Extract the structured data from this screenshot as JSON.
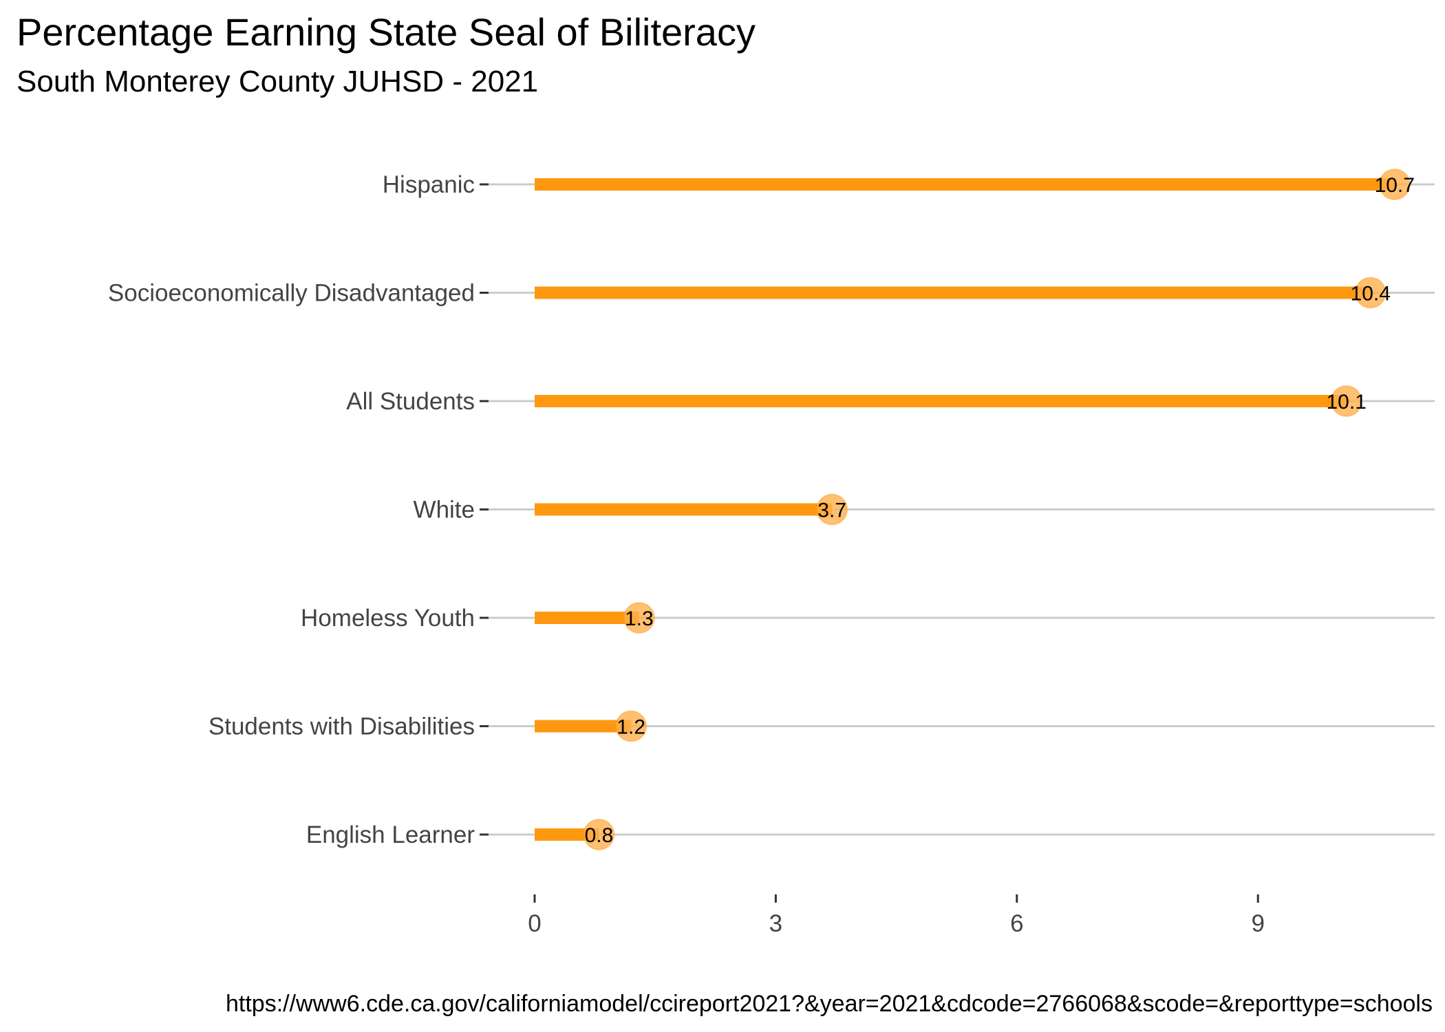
{
  "chart_data": {
    "type": "bar",
    "title": "Percentage Earning State Seal of Biliteracy",
    "subtitle": "South Monterey County JUHSD - 2021",
    "caption": "https://www6.cde.ca.gov/californiamodel/ccireport2021?&year=2021&cdcode=2766068&scode=&reporttype=schools",
    "orientation": "horizontal",
    "style": "lollipop",
    "categories": [
      "Hispanic",
      "Socioeconomically Disadvantaged",
      "All Students",
      "White",
      "Homeless Youth",
      "Students with Disabilities",
      "English Learner"
    ],
    "values": [
      10.7,
      10.4,
      10.1,
      3.7,
      1.3,
      1.2,
      0.8
    ],
    "data_labels": [
      "10.7",
      "10.4",
      "10.1",
      "3.7",
      "1.3",
      "1.2",
      "0.8"
    ],
    "x_ticks": [
      "0",
      "3",
      "6",
      "9"
    ],
    "x_tick_values": [
      0,
      3,
      6,
      9
    ],
    "xlim": [
      0,
      11.2
    ],
    "xlabel": "",
    "ylabel": "",
    "grid": "horizontal",
    "colors": {
      "bar": "#FF9811",
      "point": "#FFB04D",
      "grid": "#CCCCCC"
    }
  }
}
